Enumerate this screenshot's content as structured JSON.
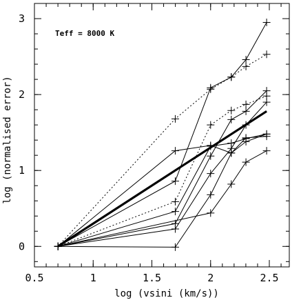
{
  "chart_data": {
    "type": "line",
    "annotation": "Teff = 8000 K",
    "xlabel": "log (vsini (km/s))",
    "ylabel": "log (normalised error)",
    "xlim": [
      0.5,
      2.67
    ],
    "ylim": [
      -0.27,
      3.2
    ],
    "xticks": [
      0.5,
      1,
      1.5,
      2,
      2.5
    ],
    "xtick_labels": [
      "0.5",
      "1",
      "1.5",
      "2",
      "2.5"
    ],
    "yticks": [
      0,
      1,
      2,
      3
    ],
    "ytick_labels": [
      "0",
      "1",
      "2",
      "3"
    ],
    "x_minor_step": 0.1,
    "y_minor_step": 0.2,
    "grid": false,
    "colors": {
      "line": "#000000",
      "background": "#ffffff"
    },
    "fit_line": {
      "x": [
        0.7,
        2.477
      ],
      "y": [
        0.0,
        1.78
      ],
      "style": "bold"
    },
    "series": [
      {
        "style": "solid",
        "x": [
          0.7,
          1.699,
          2.0,
          2.176,
          2.301,
          2.477
        ],
        "y": [
          0.0,
          1.26,
          1.33,
          1.23,
          1.43,
          1.45
        ]
      },
      {
        "style": "solid",
        "x": [
          0.7,
          1.699,
          2.0,
          2.176,
          2.301,
          2.477
        ],
        "y": [
          0.0,
          0.86,
          2.09,
          2.23,
          2.46,
          2.95
        ]
      },
      {
        "style": "solid",
        "x": [
          0.7,
          1.699,
          2.0,
          2.176,
          2.301,
          2.477
        ],
        "y": [
          0.0,
          0.46,
          1.32,
          1.36,
          1.42,
          1.48
        ]
      },
      {
        "style": "solid",
        "x": [
          0.7,
          1.699,
          2.0,
          2.176,
          2.301,
          2.477
        ],
        "y": [
          0.0,
          0.3,
          1.19,
          1.67,
          1.78,
          2.05
        ]
      },
      {
        "style": "solid",
        "x": [
          0.7,
          1.699,
          2.0,
          2.176,
          2.301,
          2.477
        ],
        "y": [
          0.0,
          0.23,
          0.96,
          1.29,
          1.6,
          1.9
        ]
      },
      {
        "style": "solid",
        "x": [
          0.7,
          1.699,
          2.0,
          2.176,
          2.301,
          2.477
        ],
        "y": [
          0.0,
          -0.01,
          0.68,
          1.23,
          1.38,
          1.48
        ]
      },
      {
        "style": "solid",
        "x": [
          0.7,
          2.0,
          2.176,
          2.301,
          2.477
        ],
        "y": [
          0.0,
          0.44,
          0.82,
          1.11,
          1.26
        ]
      },
      {
        "style": "dotted",
        "x": [
          0.7,
          1.699,
          2.0,
          2.176,
          2.301,
          2.477
        ],
        "y": [
          0.0,
          1.68,
          2.07,
          2.23,
          2.37,
          2.53
        ]
      },
      {
        "style": "dotted",
        "x": [
          0.7,
          1.699,
          2.0,
          2.176,
          2.301,
          2.477
        ],
        "y": [
          0.0,
          0.59,
          1.6,
          1.79,
          1.87,
          1.98
        ]
      }
    ]
  }
}
